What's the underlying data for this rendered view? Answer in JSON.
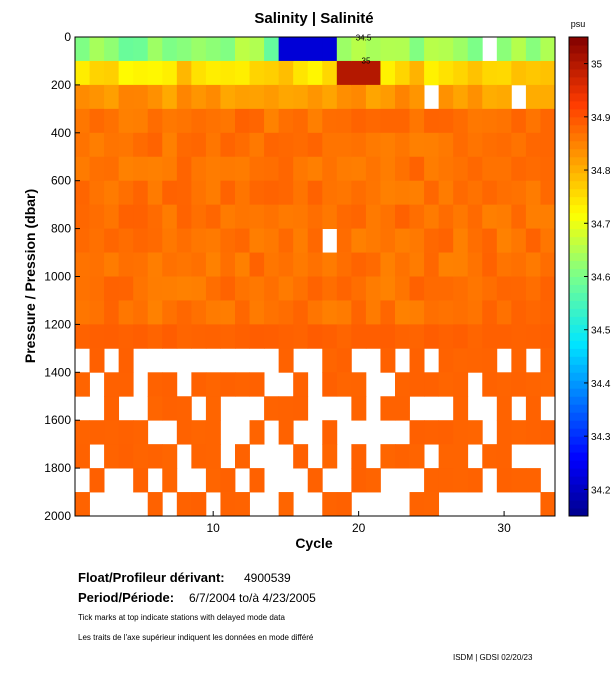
{
  "chart_data": {
    "type": "heatmap",
    "title": "Salinity | Salinité",
    "xlabel": "Cycle",
    "ylabel": "Pressure / Pression (dbar)",
    "xlim": [
      0.5,
      33.5
    ],
    "ylim": [
      2000,
      0
    ],
    "xticks": [
      10,
      20,
      30
    ],
    "yticks": [
      0,
      200,
      400,
      600,
      800,
      1000,
      1200,
      1400,
      1600,
      1800,
      2000
    ],
    "colorbar": {
      "unit": "psu",
      "ticks": [
        34.2,
        34.3,
        34.4,
        34.5,
        34.6,
        34.7,
        34.8,
        34.9,
        35
      ],
      "tick_labels": [
        "34.2",
        "34.3",
        "34.4",
        "34.5",
        "34.6",
        "34.7",
        "34.8",
        "34.9",
        "35"
      ],
      "range": [
        34.15,
        35.05
      ]
    },
    "contour_labels": [
      {
        "text": "34.5",
        "cycle": 19.8,
        "pressure": 15
      },
      {
        "text": "35",
        "cycle": 20.2,
        "pressure": 110
      }
    ],
    "delayed_mode_ticks": [],
    "grid": false,
    "legend": "none"
  },
  "info": {
    "float_label": "Float/Profileur dérivant:",
    "float_id": "4900539",
    "period_label": "Period/Période:",
    "period_value": "6/7/2004  to/à  4/23/2005",
    "note_en": "Tick marks at top indicate stations with delayed mode data",
    "note_fr": "Les traits de l'axe supérieur indiquent les données en mode différé",
    "credit": "ISDM | GDSI  02/20/23"
  }
}
